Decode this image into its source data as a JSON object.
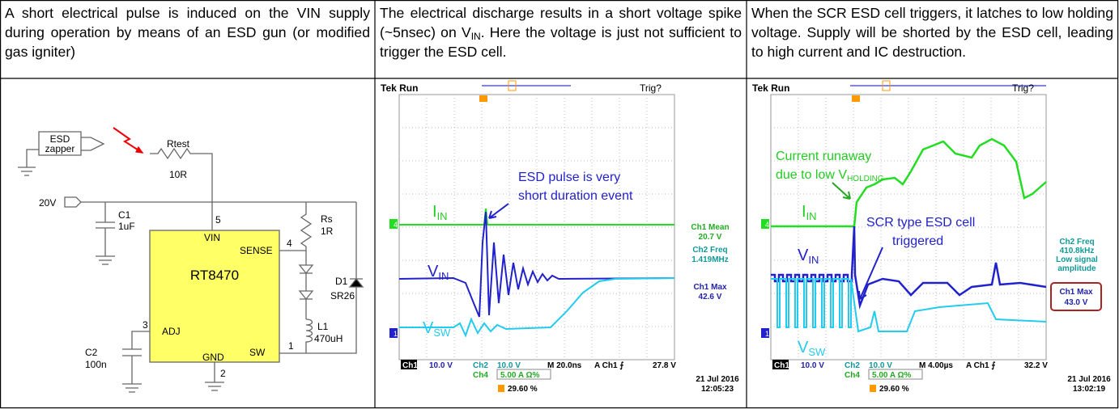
{
  "cells": [
    {
      "text": "A short electrical pulse is induced on the VIN supply during operation by means of an ESD gun (or modified gas igniter)"
    },
    {
      "text": "The electrical discharge results in a short voltage spike (~5nsec) on V",
      "sub": "IN",
      "tail": ". Here the voltage is just not sufficient to trigger the ESD cell."
    },
    {
      "text": "When the SCR ESD cell triggers, it latches to low holding voltage. Supply will be shorted by the ESD cell, leading to high current and IC destruction."
    }
  ],
  "schematic": {
    "esd": "ESD",
    "zapper": "zapper",
    "rtest": "Rtest",
    "rtest_value": "10R",
    "supply": "20V",
    "c1": "C1",
    "c1_value": "1uF",
    "pin5": "5",
    "vin": "VIN",
    "sense": "SENSE",
    "pin4": "4",
    "rs": "Rs",
    "rs_value": "1R",
    "ic": "RT8470",
    "d1": "D1",
    "d1_value": "SR26",
    "pin3": "3",
    "adj": "ADJ",
    "l1": "L1",
    "l1_value": "470uH",
    "c2": "C2",
    "c2_value": "100n",
    "gnd": "GND",
    "sw": "SW",
    "pin1": "1",
    "pin2": "2"
  },
  "scopes": [
    {
      "status": "Tek Run",
      "trig": "Trig?",
      "note": [
        "ESD pulse is very",
        "short duration event"
      ],
      "iin": {
        "main": "I",
        "sub": "IN"
      },
      "vin": {
        "main": "V",
        "sub": "IN"
      },
      "vsw": {
        "main": "V",
        "sub": "SW"
      },
      "ch4_marker": "4",
      "ch1_marker": "1",
      "measurements": [
        "Ch1 Mean",
        "20.7 V",
        "Ch2 Freq",
        "1.419MHz",
        "Ch1 Max",
        "42.6 V"
      ],
      "ch1": "Ch1",
      "ch1_scale": "10.0 V",
      "ch2": "Ch2",
      "ch2_scale": "10.0 V",
      "timebase": "M 20.0ns",
      "trigger": "A  Ch1  ⨍",
      "trigger_level": "27.8 V",
      "ch4": "Ch4",
      "ch4_scale": "5.00 A Ω%",
      "position": "29.60 %",
      "date": "21 Jul  2016",
      "time": "12:05:23"
    },
    {
      "status": "Tek Run",
      "trig": "Trig?",
      "note1": {
        "line1": "Current runaway",
        "line2": "due to low V",
        "sub": "HOLDING"
      },
      "note2": [
        "SCR type ESD cell",
        "triggered"
      ],
      "iin": {
        "main": "I",
        "sub": "IN"
      },
      "vin": {
        "main": "V",
        "sub": "IN"
      },
      "vsw": {
        "main": "V",
        "sub": "SW"
      },
      "ch4_marker": "4",
      "ch1_marker": "1",
      "measurements": [
        "Ch2 Freq",
        "410.8kHz",
        "Low signal",
        "amplitude",
        "Ch1 Max",
        "43.0 V"
      ],
      "ch1": "Ch1",
      "ch1_scale": "10.0 V",
      "ch2": "Ch2",
      "ch2_scale": "10.0 V",
      "timebase": "M 4.00µs",
      "trigger": "A  Ch1  ⨍",
      "trigger_level": "32.2 V",
      "ch4": "Ch4",
      "ch4_scale": "5.00 A Ω%",
      "position": "29.60 %",
      "date": "21 Jul  2016",
      "time": "13:02:19"
    }
  ]
}
